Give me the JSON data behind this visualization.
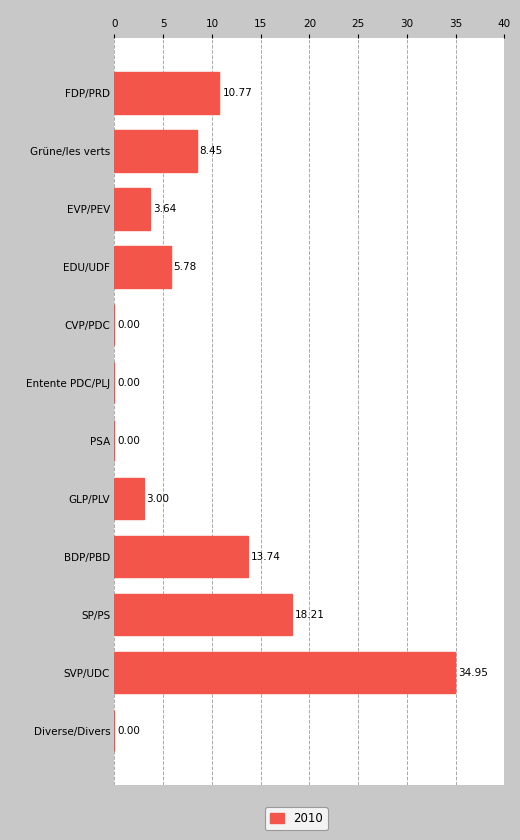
{
  "categories": [
    "FDP/PRD",
    "Grüne/les verts",
    "EVP/PEV",
    "EDU/UDF",
    "CVP/PDC",
    "Entente PDC/PLJ",
    "PSA",
    "GLP/PLV",
    "BDP/PBD",
    "SP/PS",
    "SVP/UDC",
    "Diverse/Divers"
  ],
  "values": [
    10.77,
    8.45,
    3.64,
    5.78,
    0.0,
    0.0,
    0.0,
    3.0,
    13.74,
    18.21,
    34.95,
    0.0
  ],
  "bar_color": "#f4554a",
  "background_color": "#c8c8c8",
  "plot_background": "#ffffff",
  "xlim": [
    0,
    40
  ],
  "xticks": [
    0,
    5,
    10,
    15,
    20,
    25,
    30,
    35,
    40
  ],
  "legend_label": "2010",
  "value_fontsize": 7.5,
  "label_fontsize": 7.5,
  "tick_fontsize": 7.5,
  "bar_height": 0.72
}
